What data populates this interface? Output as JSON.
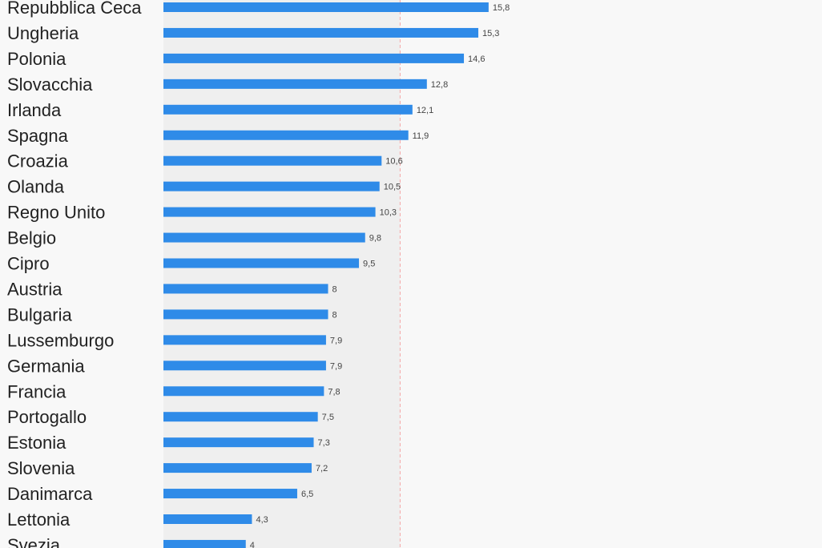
{
  "chart_data": {
    "type": "bar",
    "orientation": "horizontal",
    "title": "",
    "xlabel": "",
    "ylabel": "",
    "categories": [
      "Repubblica Ceca",
      "Ungheria",
      "Polonia",
      "Slovacchia",
      "Irlanda",
      "Spagna",
      "Croazia",
      "Olanda",
      "Regno Unito",
      "Belgio",
      "Cipro",
      "Austria",
      "Bulgaria",
      "Lussemburgo",
      "Germania",
      "Francia",
      "Portogallo",
      "Estonia",
      "Slovenia",
      "Danimarca",
      "Lettonia",
      "Svezia"
    ],
    "values": [
      15.8,
      15.3,
      14.6,
      12.8,
      12.1,
      11.9,
      10.6,
      10.5,
      10.3,
      9.8,
      9.5,
      8,
      8,
      7.9,
      7.9,
      7.8,
      7.5,
      7.3,
      7.2,
      6.5,
      4.3,
      4
    ],
    "value_labels": [
      "15,8",
      "15,3",
      "14,6",
      "12,8",
      "12,1",
      "11,9",
      "10,6",
      "10,5",
      "10,3",
      "9,8",
      "9,5",
      "8",
      "8",
      "7,9",
      "7,9",
      "7,8",
      "7,5",
      "7,3",
      "7,2",
      "6,5",
      "4,3",
      "4"
    ],
    "xlim": [
      0,
      32
    ],
    "reference_line": 11.5,
    "grid": false,
    "legend": "none",
    "colors": {
      "bar": "#2f8be8",
      "reference_line": "#f4a6a6",
      "shaded_band": "#efefef",
      "background": "#f8f8f8"
    }
  }
}
